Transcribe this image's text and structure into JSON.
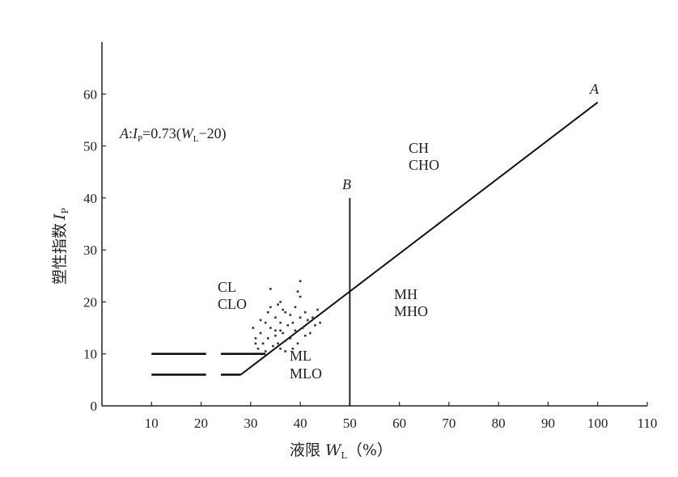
{
  "chart_data": {
    "type": "line",
    "xlabel": {
      "prefix": "液限",
      "var": "W",
      "sub": "L",
      "unit": "（%）"
    },
    "ylabel": {
      "prefix": "塑性指数",
      "var": "I",
      "sub": "P"
    },
    "xlim": [
      0,
      110
    ],
    "ylim": [
      0,
      70
    ],
    "x_ticks": [
      10,
      20,
      30,
      40,
      50,
      60,
      70,
      80,
      90,
      100,
      110
    ],
    "y_ticks": [
      0,
      10,
      20,
      30,
      40,
      50,
      60
    ],
    "equation": {
      "lead": "A",
      "sep": ":",
      "var1": "I",
      "sub1": "P",
      "mid": "=0.73(",
      "var2": "W",
      "sub2": "L",
      "tail": "−20)"
    },
    "series": [
      {
        "name": "A",
        "x": [
          28,
          100
        ],
        "y": [
          6,
          58.4
        ]
      },
      {
        "name": "B",
        "x": [
          50,
          50
        ],
        "y": [
          0,
          40
        ]
      }
    ],
    "dashed_lines": [
      {
        "x": [
          10,
          21
        ],
        "y": [
          10,
          10
        ]
      },
      {
        "x": [
          24,
          33
        ],
        "y": [
          10,
          10
        ]
      },
      {
        "x": [
          10,
          21
        ],
        "y": [
          6,
          6
        ]
      },
      {
        "x": [
          24,
          28
        ],
        "y": [
          6,
          6
        ]
      }
    ],
    "scatter_points": [
      [
        30.5,
        15
      ],
      [
        31,
        13
      ],
      [
        31.5,
        11
      ],
      [
        32,
        14
      ],
      [
        32.5,
        12
      ],
      [
        33,
        16
      ],
      [
        33,
        10.5
      ],
      [
        33.5,
        13
      ],
      [
        34,
        19
      ],
      [
        34,
        15
      ],
      [
        34.5,
        11.5
      ],
      [
        35,
        17
      ],
      [
        35,
        13.5
      ],
      [
        35.5,
        12
      ],
      [
        36,
        20
      ],
      [
        36,
        16
      ],
      [
        36,
        11
      ],
      [
        36.5,
        14
      ],
      [
        37,
        18
      ],
      [
        37,
        12.5
      ],
      [
        37.5,
        15.5
      ],
      [
        38,
        17.5
      ],
      [
        38,
        13
      ],
      [
        38.5,
        16
      ],
      [
        39,
        19
      ],
      [
        39,
        14.5
      ],
      [
        39.5,
        12
      ],
      [
        40,
        24
      ],
      [
        40,
        21
      ],
      [
        40,
        17
      ],
      [
        40.5,
        15
      ],
      [
        41,
        18
      ],
      [
        41,
        13.5
      ],
      [
        41.5,
        16.5
      ],
      [
        42,
        14
      ],
      [
        42.5,
        17
      ],
      [
        43,
        15.5
      ],
      [
        43.5,
        18.5
      ],
      [
        44,
        16
      ],
      [
        34,
        22.5
      ],
      [
        35,
        14.5
      ],
      [
        36.5,
        18.5
      ],
      [
        37,
        10.5
      ],
      [
        38.5,
        11
      ],
      [
        39.5,
        22
      ],
      [
        32,
        16.5
      ],
      [
        33.5,
        18
      ],
      [
        31,
        12
      ],
      [
        35.5,
        19.5
      ],
      [
        36,
        14.5
      ]
    ],
    "region_labels": {
      "ch": "CH",
      "cho": "CHO",
      "cl": "CL",
      "clo": "CLO",
      "mh": "MH",
      "mho": "MHO",
      "ml": "ML",
      "mlo": "MLO",
      "line_a": "A",
      "line_b": "B"
    },
    "grid": false,
    "legend": "none"
  }
}
